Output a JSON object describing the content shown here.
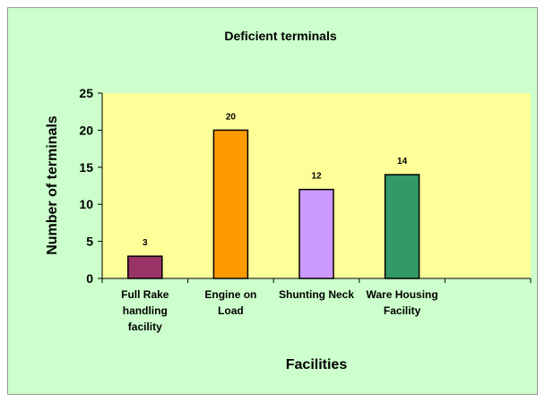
{
  "chart_data": {
    "type": "bar",
    "title": "Deficient terminals",
    "x_label": "Facilities",
    "y_label": "Number of terminals",
    "categories": [
      "Full Rake handling facility",
      "Engine on Load",
      "Shunting Neck",
      "Ware Housing Facility",
      null
    ],
    "values": [
      3,
      20,
      12,
      14,
      null
    ],
    "colors": [
      "#993366",
      "#ff9900",
      "#cc99ff",
      "#339966",
      null
    ],
    "ylim": [
      0,
      25
    ],
    "yticks": [
      0,
      5,
      10,
      15,
      20,
      25
    ],
    "grid": false
  }
}
